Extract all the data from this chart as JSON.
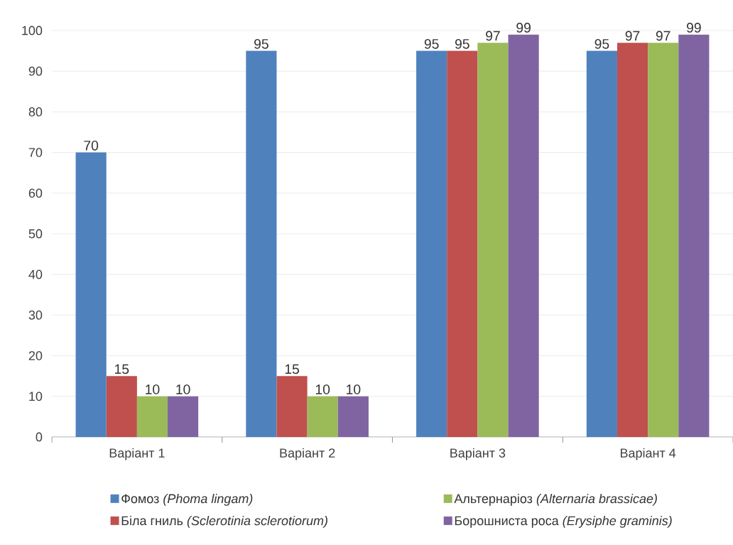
{
  "chart_data": {
    "type": "bar",
    "categories": [
      "Варіант 1",
      "Варіант 2",
      "Варіант 3",
      "Варіант 4"
    ],
    "series": [
      {
        "name": "Фомоз *(Phoma lingam)*",
        "color": "#4f81bd",
        "values": [
          70,
          95,
          95,
          95
        ]
      },
      {
        "name": "Біла гниль *(Sclerotinia sclerotiorum)*",
        "color": "#c0504d",
        "values": [
          15,
          15,
          95,
          97
        ]
      },
      {
        "name": "Альтернаріоз *(Alternaria brassicae)*",
        "color": "#9bbb59",
        "values": [
          10,
          10,
          97,
          97
        ]
      },
      {
        "name": "Борошниста роса *(Erysiphe graminis)*",
        "color": "#8064a2",
        "values": [
          10,
          10,
          99,
          99
        ]
      }
    ],
    "ylim": [
      0,
      100
    ],
    "yticks": [
      0,
      10,
      20,
      30,
      40,
      50,
      60,
      70,
      80,
      90,
      100
    ],
    "grid": "y",
    "legend": "bottom",
    "data_labels": true
  }
}
